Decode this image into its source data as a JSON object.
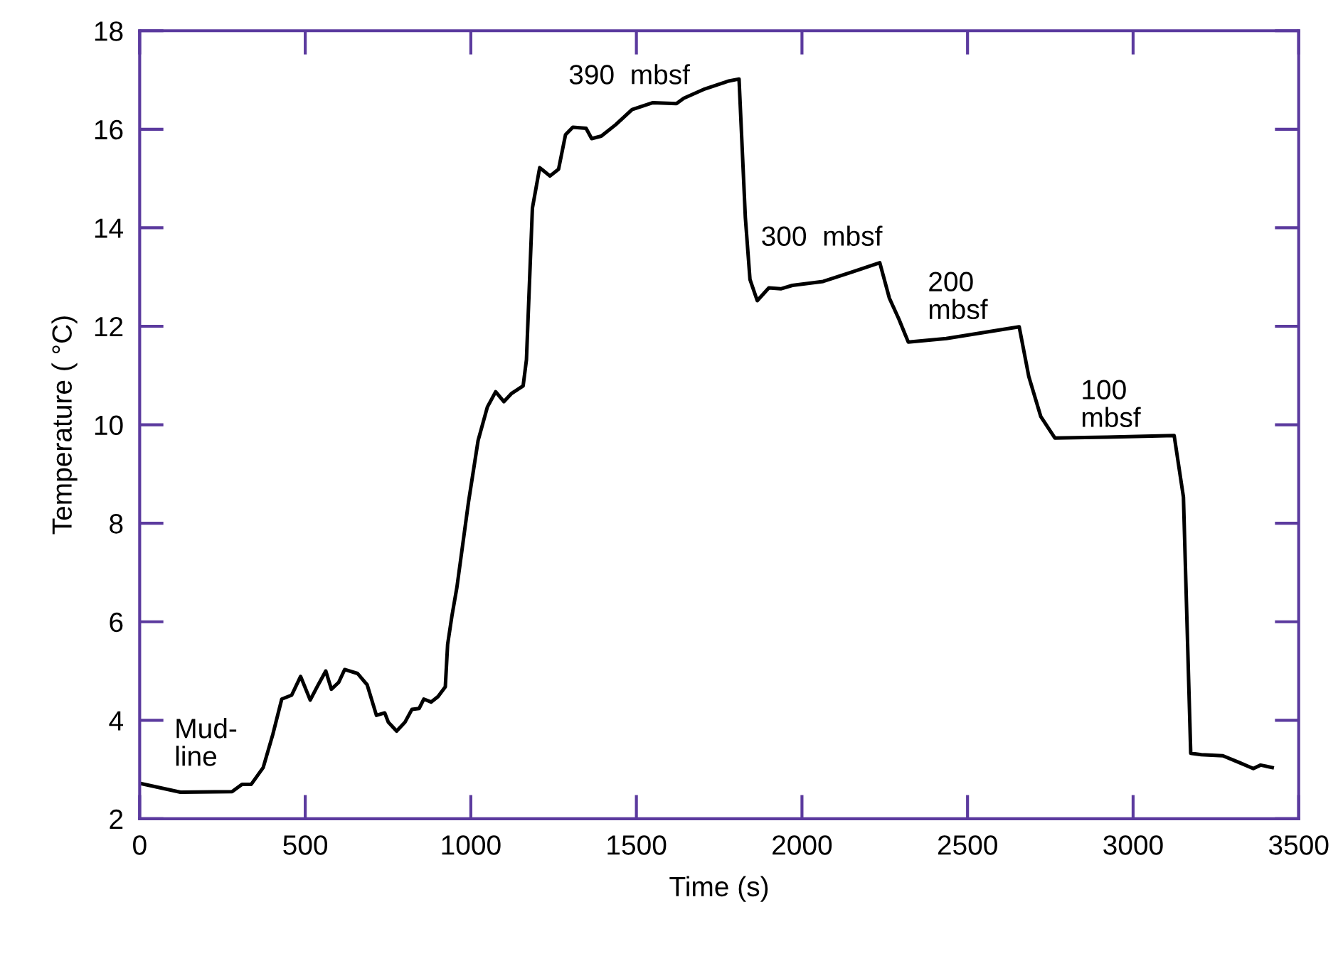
{
  "chart_data": {
    "type": "line",
    "xlabel": "Time (s)",
    "ylabel": "Temperature ( °C)",
    "xlim": [
      0,
      3500
    ],
    "xticks": [
      0,
      500,
      1000,
      1500,
      2000,
      2500,
      3000,
      3500
    ],
    "ylim": [
      2,
      18
    ],
    "yticks": [
      2,
      4,
      6,
      8,
      10,
      12,
      14,
      16,
      18
    ],
    "grid": false,
    "marker": "none",
    "line_style": "solid",
    "series": [
      {
        "color": "#000000",
        "x": [
          0,
          123,
          279,
          309,
          337,
          373,
          402,
          429,
          459,
          486,
          515,
          536,
          562,
          579,
          601,
          619,
          658,
          687,
          715,
          740,
          751,
          776,
          801,
          822,
          844,
          858,
          880,
          901,
          923,
          930,
          943,
          958,
          993,
          1022,
          1050,
          1075,
          1100,
          1122,
          1158,
          1168,
          1186,
          1208,
          1239,
          1265,
          1286,
          1308,
          1348,
          1365,
          1394,
          1437,
          1487,
          1550,
          1621,
          1643,
          1707,
          1779,
          1810,
          1829,
          1843,
          1865,
          1900,
          1936,
          1971,
          2064,
          2150,
          2235,
          2264,
          2293,
          2321,
          2436,
          2656,
          2685,
          2721,
          2764,
          2921,
          3124,
          3152,
          3174,
          3206,
          3271,
          3321,
          3363,
          3385,
          3420
        ],
        "values": [
          2.72,
          2.54,
          2.55,
          2.7,
          2.7,
          3.04,
          3.71,
          4.43,
          4.51,
          4.89,
          4.41,
          4.68,
          5.0,
          4.63,
          4.77,
          5.03,
          4.95,
          4.72,
          4.1,
          4.15,
          3.96,
          3.78,
          3.96,
          4.22,
          4.24,
          4.43,
          4.37,
          4.48,
          4.68,
          5.54,
          6.12,
          6.7,
          8.43,
          9.68,
          10.36,
          10.67,
          10.47,
          10.63,
          10.79,
          11.32,
          14.4,
          15.22,
          15.05,
          15.19,
          15.89,
          16.04,
          16.02,
          15.81,
          15.86,
          16.09,
          16.4,
          16.54,
          16.52,
          16.63,
          16.82,
          16.98,
          17.02,
          14.21,
          12.95,
          12.52,
          12.78,
          12.76,
          12.83,
          12.91,
          13.1,
          13.29,
          12.57,
          12.14,
          11.68,
          11.75,
          11.99,
          10.98,
          10.17,
          9.73,
          9.75,
          9.78,
          8.53,
          3.33,
          3.3,
          3.28,
          3.14,
          3.02,
          3.09,
          3.04
        ]
      }
    ],
    "annotations": [
      "Mud-\nline",
      "390  mbsf",
      "300  mbsf",
      "200\nmbsf",
      "100\nmbsf"
    ]
  }
}
